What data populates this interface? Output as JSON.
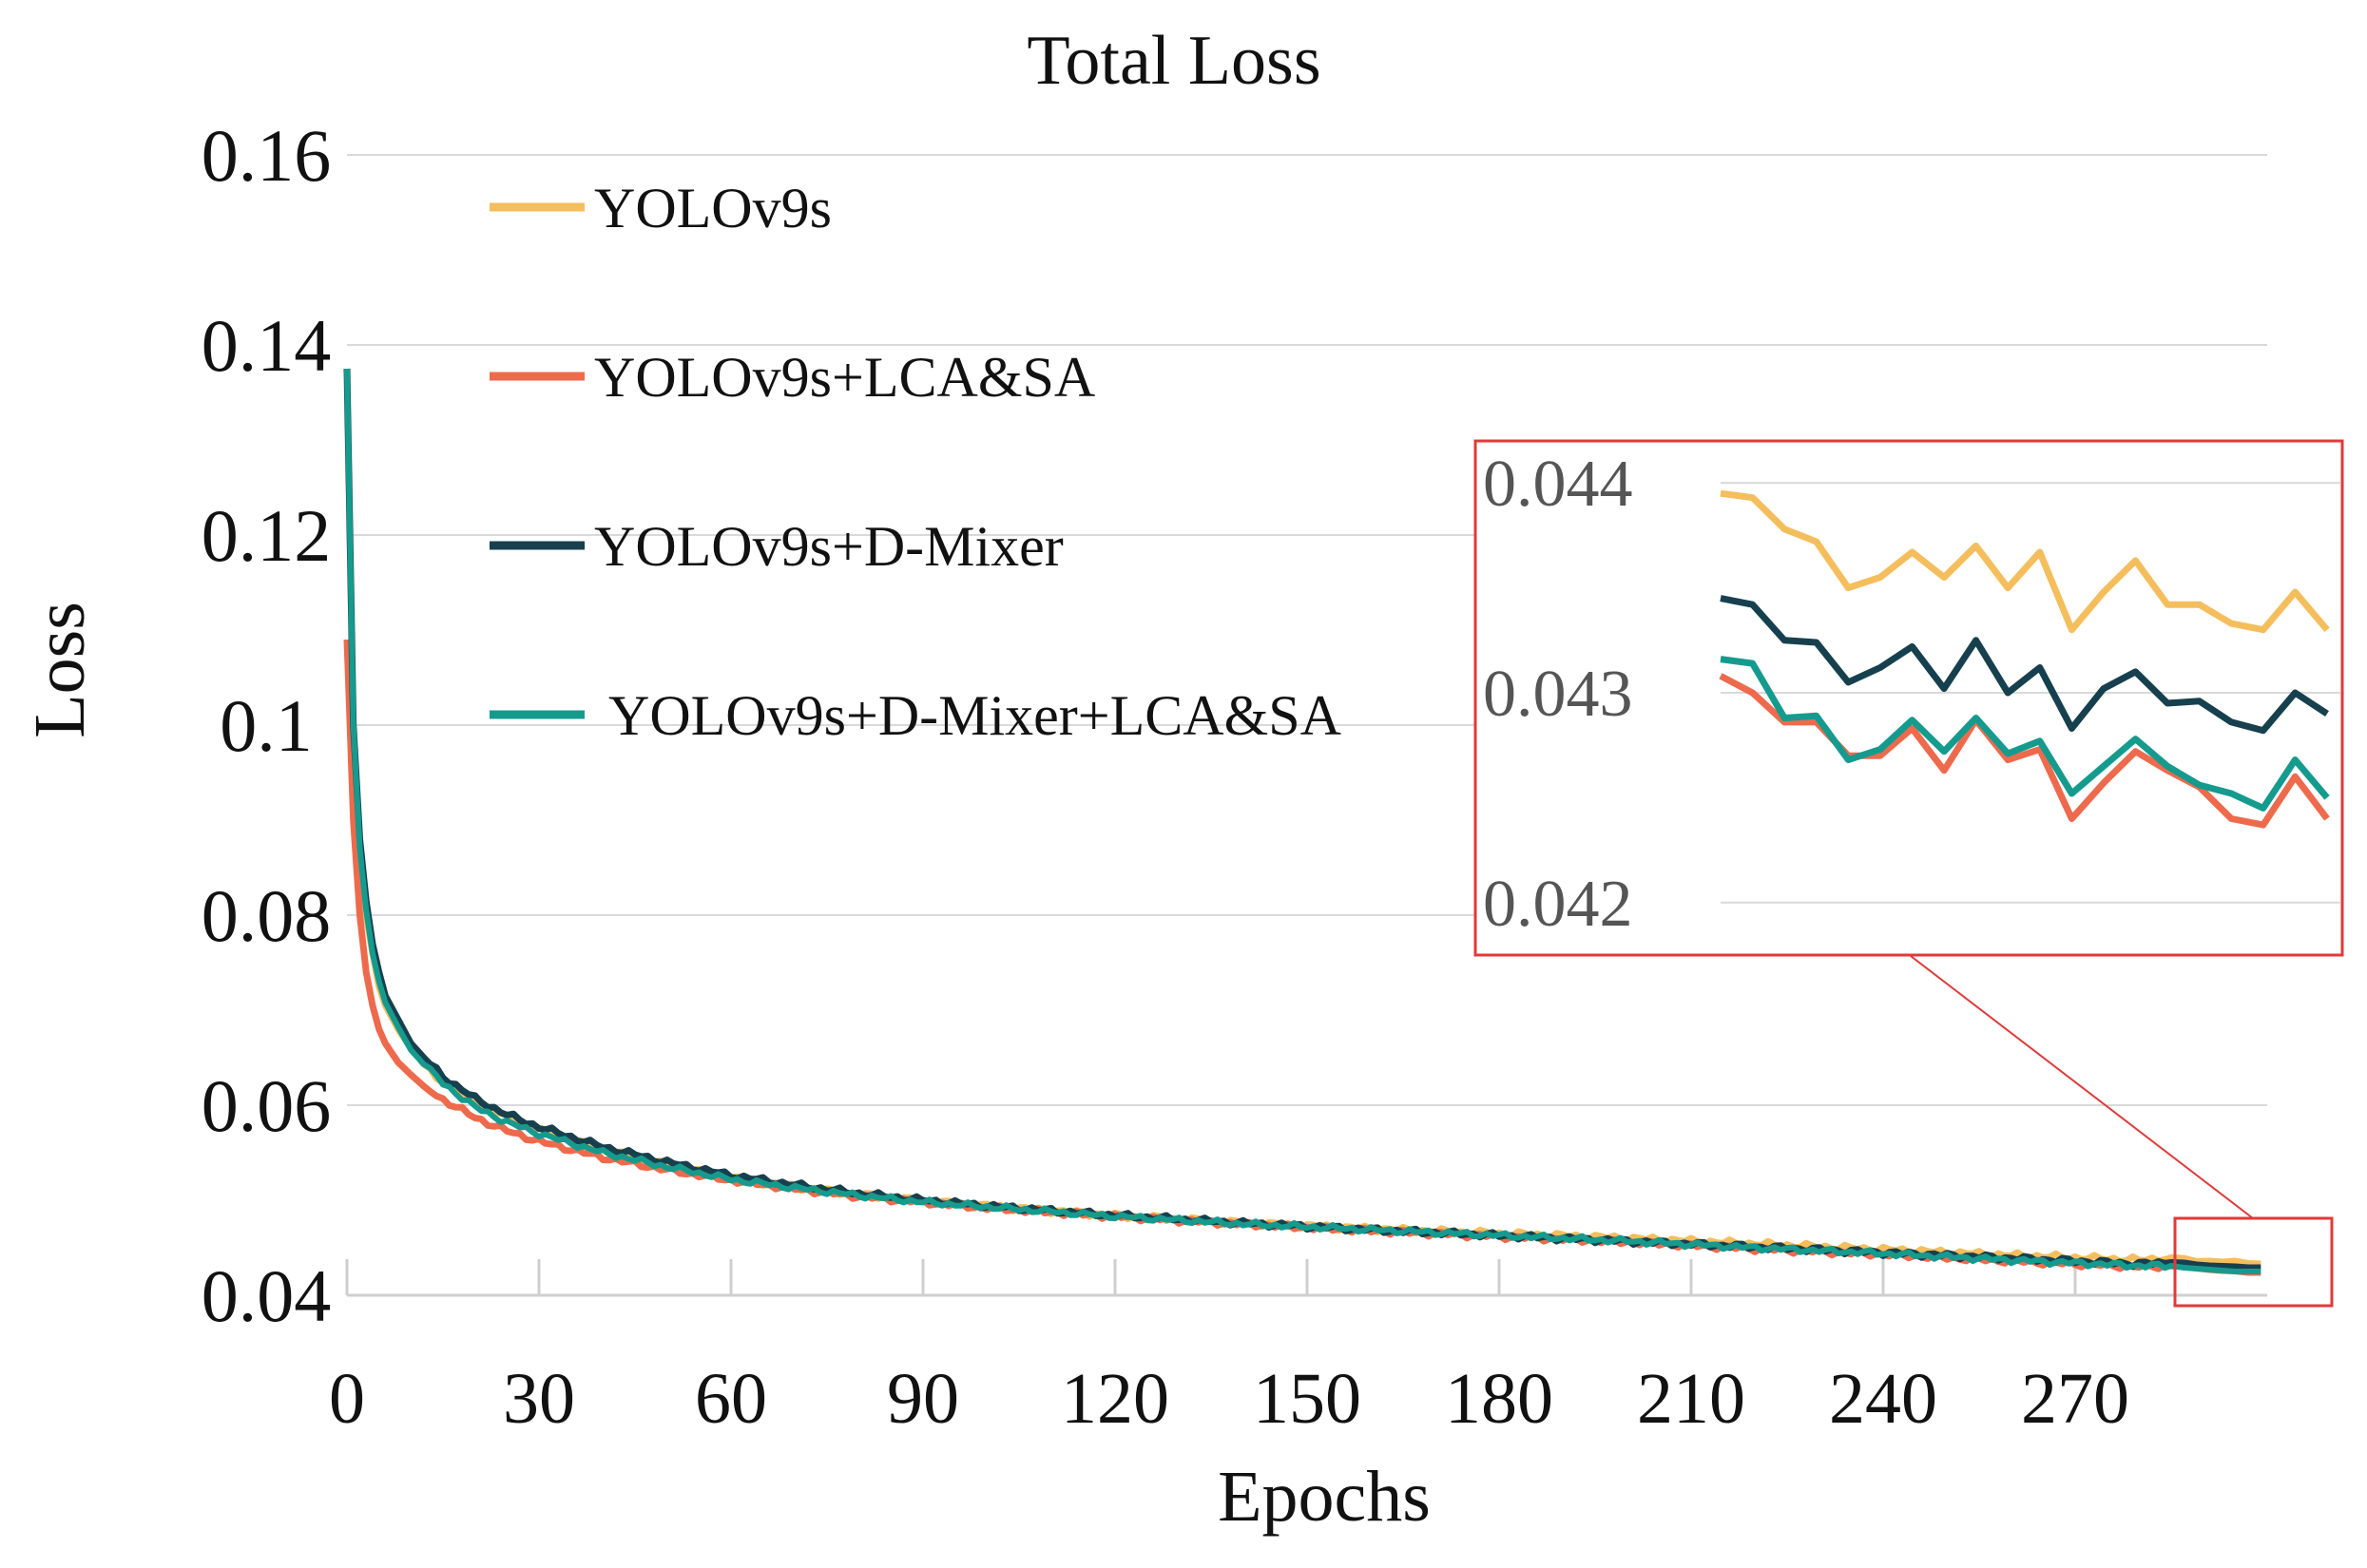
{
  "chart_data": {
    "type": "line",
    "title": "Total Loss",
    "xlabel": "Epochs",
    "ylabel": "Loss",
    "xlim": [
      0,
      300
    ],
    "ylim": [
      0.04,
      0.16
    ],
    "x_ticks": [
      "0",
      "30",
      "60",
      "90",
      "120",
      "150",
      "180",
      "210",
      "240",
      "270"
    ],
    "y_ticks": [
      "0.04",
      "0.06",
      "0.08",
      "0.1",
      "0.12",
      "0.14",
      "0.16"
    ],
    "grid": true,
    "legend_position": "top-left",
    "series": [
      {
        "name": "YOLOv9s",
        "color": "#F5BE5C",
        "x": [
          0,
          1,
          2,
          3,
          4,
          5,
          6,
          8,
          10,
          12,
          15,
          20,
          25,
          30,
          40,
          50,
          60,
          70,
          80,
          90,
          100,
          120,
          140,
          160,
          180,
          200,
          220,
          240,
          260,
          280,
          285,
          287,
          289,
          291,
          293,
          295,
          297,
          299
        ],
        "values": [
          0.109,
          0.094,
          0.086,
          0.08,
          0.076,
          0.0725,
          0.0705,
          0.068,
          0.066,
          0.0643,
          0.0625,
          0.0603,
          0.0587,
          0.0574,
          0.0553,
          0.0537,
          0.0524,
          0.0514,
          0.0506,
          0.0499,
          0.0494,
          0.0484,
          0.0476,
          0.047,
          0.0465,
          0.046,
          0.0454,
          0.0448,
          0.0442,
          0.0437,
          0.04395,
          0.04388,
          0.04355,
          0.0436,
          0.0435,
          0.0436,
          0.04335,
          0.0433
        ]
      },
      {
        "name": "YOLOv9s+LCA&SA",
        "color": "#EE6A4C",
        "x": [
          0,
          1,
          2,
          3,
          4,
          5,
          6,
          8,
          10,
          12,
          15,
          20,
          25,
          30,
          40,
          50,
          60,
          70,
          80,
          90,
          100,
          120,
          140,
          160,
          180,
          200,
          220,
          240,
          260,
          280,
          285,
          287,
          289,
          291,
          293,
          295,
          297,
          299
        ],
        "values": [
          0.109,
          0.09,
          0.08,
          0.074,
          0.0705,
          0.068,
          0.0665,
          0.0645,
          0.0632,
          0.062,
          0.0606,
          0.0587,
          0.0573,
          0.0562,
          0.0545,
          0.0532,
          0.0521,
          0.0512,
          0.0504,
          0.0498,
          0.0492,
          0.0483,
          0.0475,
          0.0468,
          0.0462,
          0.0456,
          0.0449,
          0.0443,
          0.0436,
          0.043,
          0.04308,
          0.043,
          0.04285,
          0.0427,
          0.0426,
          0.04255,
          0.0424,
          0.0424
        ]
      },
      {
        "name": "YOLOv9s+D-Mixer",
        "color": "#17404E",
        "x": [
          0,
          1,
          2,
          3,
          4,
          5,
          6,
          8,
          10,
          12,
          15,
          20,
          25,
          30,
          40,
          50,
          60,
          70,
          80,
          90,
          100,
          120,
          140,
          160,
          180,
          200,
          220,
          240,
          260,
          280,
          285,
          287,
          289,
          291,
          293,
          295,
          297,
          299
        ],
        "values": [
          0.1375,
          0.1,
          0.088,
          0.0815,
          0.077,
          0.074,
          0.0715,
          0.069,
          0.0665,
          0.065,
          0.063,
          0.0607,
          0.059,
          0.0577,
          0.0556,
          0.054,
          0.0526,
          0.0516,
          0.0507,
          0.05,
          0.0494,
          0.0484,
          0.0476,
          0.0469,
          0.0463,
          0.0457,
          0.0451,
          0.0445,
          0.0439,
          0.0433,
          0.04345,
          0.0434,
          0.0432,
          0.0431,
          0.04305,
          0.043,
          0.0429,
          0.0429
        ]
      },
      {
        "name": "YOLOv9s+D-Mixer+LCA&SA",
        "color": "#159B8E",
        "x": [
          0,
          1,
          2,
          3,
          4,
          5,
          6,
          8,
          10,
          12,
          15,
          20,
          25,
          30,
          40,
          50,
          60,
          70,
          80,
          90,
          100,
          120,
          140,
          160,
          180,
          200,
          220,
          240,
          260,
          280,
          285,
          287,
          289,
          291,
          293,
          295,
          297,
          299
        ],
        "values": [
          0.1375,
          0.1,
          0.087,
          0.0805,
          0.076,
          0.073,
          0.0708,
          0.0682,
          0.0658,
          0.0643,
          0.0623,
          0.0598,
          0.0582,
          0.057,
          0.055,
          0.0535,
          0.0522,
          0.0513,
          0.0505,
          0.0498,
          0.0493,
          0.0483,
          0.0475,
          0.0469,
          0.0463,
          0.0457,
          0.045,
          0.0444,
          0.0437,
          0.0431,
          0.0431,
          0.0429,
          0.0428,
          0.0427,
          0.0426,
          0.0425,
          0.0425,
          0.0425
        ]
      }
    ],
    "inset": {
      "y_ticks": [
        "0.044",
        "0.043",
        "0.042"
      ],
      "ylim": [
        0.04175,
        0.0442
      ],
      "xlim": [
        284,
        300
      ],
      "series": [
        {
          "name": "YOLOv9s",
          "color": "#F5BE5C",
          "values": [
            0.04395,
            0.04393,
            0.04378,
            0.04372,
            0.0435,
            0.04355,
            0.04367,
            0.04355,
            0.0437,
            0.0435,
            0.04367,
            0.0433,
            0.04348,
            0.04363,
            0.04342,
            0.04342,
            0.04333,
            0.0433,
            0.04348,
            0.0433
          ]
        },
        {
          "name": "YOLOv9s+LCA&SA",
          "color": "#EE6A4C",
          "values": [
            0.04308,
            0.043,
            0.04286,
            0.04286,
            0.0427,
            0.0427,
            0.04283,
            0.04263,
            0.04287,
            0.04268,
            0.04273,
            0.0424,
            0.04257,
            0.04272,
            0.04263,
            0.04255,
            0.0424,
            0.04237,
            0.0426,
            0.0424
          ]
        },
        {
          "name": "YOLOv9s+D-Mixer",
          "color": "#17404E",
          "values": [
            0.04345,
            0.04342,
            0.04325,
            0.04324,
            0.04305,
            0.04312,
            0.04322,
            0.04302,
            0.04325,
            0.043,
            0.04312,
            0.04283,
            0.04302,
            0.0431,
            0.04295,
            0.04296,
            0.04286,
            0.04282,
            0.043,
            0.0429
          ]
        },
        {
          "name": "YOLOv9s+D-Mixer+LCA&SA",
          "color": "#159B8E",
          "values": [
            0.04316,
            0.04314,
            0.04288,
            0.04289,
            0.04268,
            0.04273,
            0.04287,
            0.04272,
            0.04288,
            0.04271,
            0.04277,
            0.04252,
            0.04265,
            0.04278,
            0.04265,
            0.04256,
            0.04252,
            0.04245,
            0.04268,
            0.0425
          ]
        }
      ]
    }
  },
  "colors": {
    "grid": "#d9d9d9",
    "axis": "#cfcfcf",
    "highlight": "#e03a3a"
  }
}
